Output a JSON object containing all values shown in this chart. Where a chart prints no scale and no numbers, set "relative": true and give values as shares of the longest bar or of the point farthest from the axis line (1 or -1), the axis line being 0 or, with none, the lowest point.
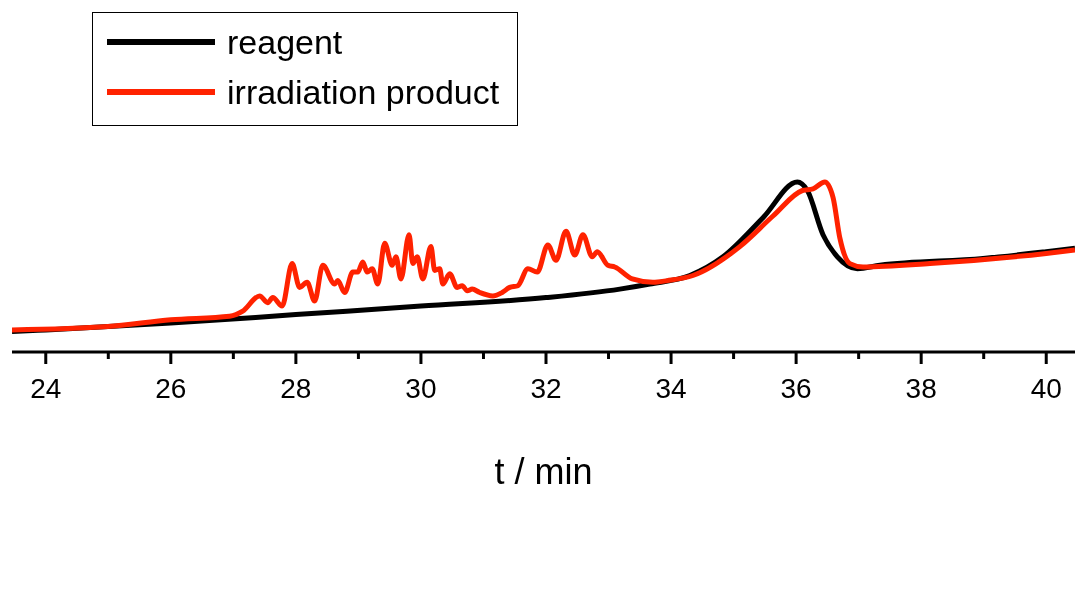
{
  "chart_data": {
    "type": "line",
    "relative": true,
    "xlabel": "t / min",
    "xlim": [
      23.46,
      40.46
    ],
    "xticks": [
      24,
      {
        "value": 25,
        "label": null
      },
      26,
      {
        "value": 27,
        "label": null
      },
      28,
      {
        "value": 29,
        "label": null
      },
      30,
      {
        "value": 31,
        "label": null
      },
      32,
      {
        "value": 33,
        "label": null
      },
      34,
      {
        "value": 35,
        "label": null
      },
      36,
      {
        "value": 37,
        "label": null
      },
      38,
      {
        "value": 39,
        "label": null
      },
      40
    ],
    "legend": "top left",
    "grid": false,
    "marker": "none",
    "line_style": "solid",
    "tick_labels": "x",
    "series": [
      {
        "name": "reagent",
        "color": "#000000",
        "x": [
          23.46,
          24,
          26,
          28,
          30,
          32,
          33.18,
          33.66,
          34.3,
          34.83,
          35.47,
          36.02,
          36.18,
          36.43,
          36.66,
          36.98,
          37.34,
          38.99,
          40,
          40.46
        ],
        "values": [
          0.12,
          0.13,
          0.17,
          0.22,
          0.27,
          0.32,
          0.37,
          0.4,
          0.45,
          0.56,
          0.79,
          1.0,
          0.95,
          0.69,
          0.56,
          0.49,
          0.51,
          0.55,
          0.59,
          0.61
        ]
      },
      {
        "name": "irradiation product",
        "color": "#ff2200",
        "x": [
          23.46,
          24.99,
          26,
          26.94,
          27.15,
          27.42,
          27.55,
          27.63,
          27.78,
          27.94,
          28.06,
          28.18,
          28.3,
          28.43,
          28.62,
          28.67,
          28.78,
          28.91,
          28.99,
          29.07,
          29.14,
          29.22,
          29.31,
          29.42,
          29.54,
          29.6,
          29.68,
          29.81,
          29.87,
          29.94,
          30.03,
          30.16,
          30.22,
          30.3,
          30.35,
          30.46,
          30.58,
          30.66,
          30.74,
          30.82,
          30.94,
          31.15,
          31.3,
          31.42,
          31.55,
          31.71,
          31.86,
          32.03,
          32.16,
          32.32,
          32.46,
          32.59,
          32.74,
          32.82,
          32.99,
          33.1,
          33.38,
          33.71,
          33.94,
          34.35,
          35.1,
          35.63,
          36.1,
          36.27,
          36.46,
          36.59,
          36.7,
          36.86,
          37.07,
          38.14,
          40,
          40.46
        ],
        "values": [
          0.13,
          0.15,
          0.19,
          0.21,
          0.24,
          0.33,
          0.29,
          0.32,
          0.27,
          0.52,
          0.38,
          0.41,
          0.3,
          0.51,
          0.4,
          0.42,
          0.35,
          0.47,
          0.47,
          0.53,
          0.47,
          0.49,
          0.4,
          0.64,
          0.51,
          0.56,
          0.43,
          0.69,
          0.52,
          0.56,
          0.43,
          0.62,
          0.48,
          0.49,
          0.4,
          0.46,
          0.38,
          0.39,
          0.36,
          0.37,
          0.35,
          0.33,
          0.35,
          0.38,
          0.39,
          0.49,
          0.47,
          0.63,
          0.54,
          0.71,
          0.57,
          0.69,
          0.56,
          0.59,
          0.51,
          0.5,
          0.43,
          0.41,
          0.42,
          0.45,
          0.62,
          0.8,
          0.95,
          0.96,
          1.0,
          0.91,
          0.67,
          0.52,
          0.5,
          0.52,
          0.58,
          0.6
        ]
      }
    ]
  }
}
